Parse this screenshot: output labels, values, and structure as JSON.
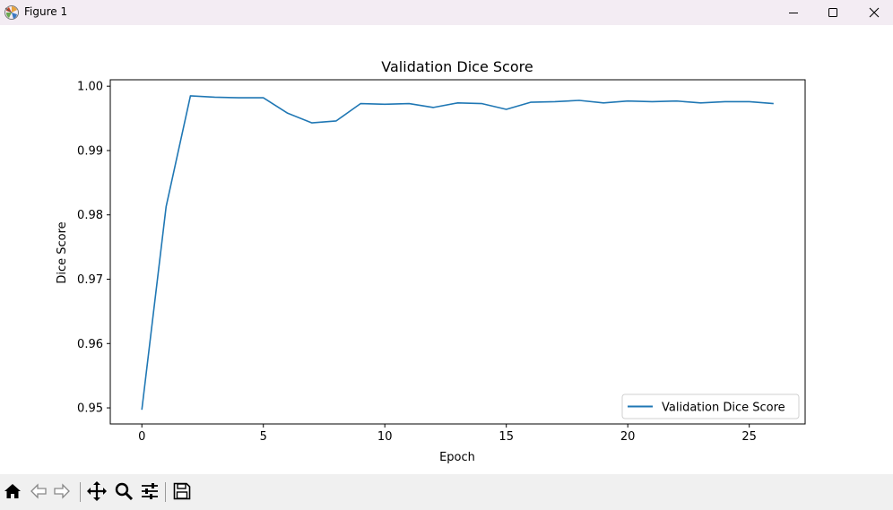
{
  "window": {
    "title": "Figure 1",
    "app_icon": "matplotlib-icon",
    "controls": [
      "minimize-icon",
      "maximize-icon",
      "close-icon"
    ]
  },
  "toolbar": {
    "icons": [
      "home-icon",
      "back-arrow-icon",
      "forward-arrow-icon",
      "pan-move-icon",
      "zoom-magnifier-icon",
      "configure-subplots-icon",
      "save-floppy-icon"
    ]
  },
  "chart_data": {
    "type": "line",
    "title": "Validation Dice Score",
    "xlabel": "Epoch",
    "ylabel": "Dice Score",
    "xlim": [
      -1.3,
      27.3
    ],
    "ylim": [
      0.9475,
      1.001
    ],
    "x_ticks": [
      0,
      5,
      10,
      15,
      20,
      25
    ],
    "x_tick_labels": [
      "0",
      "5",
      "10",
      "15",
      "20",
      "25"
    ],
    "y_ticks": [
      0.95,
      0.96,
      0.97,
      0.98,
      0.99,
      1.0
    ],
    "y_tick_labels": [
      "0.95",
      "0.96",
      "0.97",
      "0.98",
      "0.99",
      "1.00"
    ],
    "grid": false,
    "legend_position": "lower-right",
    "series": [
      {
        "name": "Validation Dice Score",
        "color": "#1f77b4",
        "x": [
          0,
          1,
          2,
          3,
          4,
          5,
          6,
          7,
          8,
          9,
          10,
          11,
          12,
          13,
          14,
          15,
          16,
          17,
          18,
          19,
          20,
          21,
          22,
          23,
          24,
          25,
          26
        ],
        "y": [
          0.9497,
          0.9813,
          0.9985,
          0.9983,
          0.9982,
          0.9982,
          0.9958,
          0.9943,
          0.9946,
          0.9973,
          0.9972,
          0.9973,
          0.9967,
          0.9974,
          0.9973,
          0.9964,
          0.9975,
          0.9976,
          0.9978,
          0.9974,
          0.9977,
          0.9976,
          0.9977,
          0.9974,
          0.9976,
          0.9976,
          0.9973
        ]
      }
    ]
  }
}
